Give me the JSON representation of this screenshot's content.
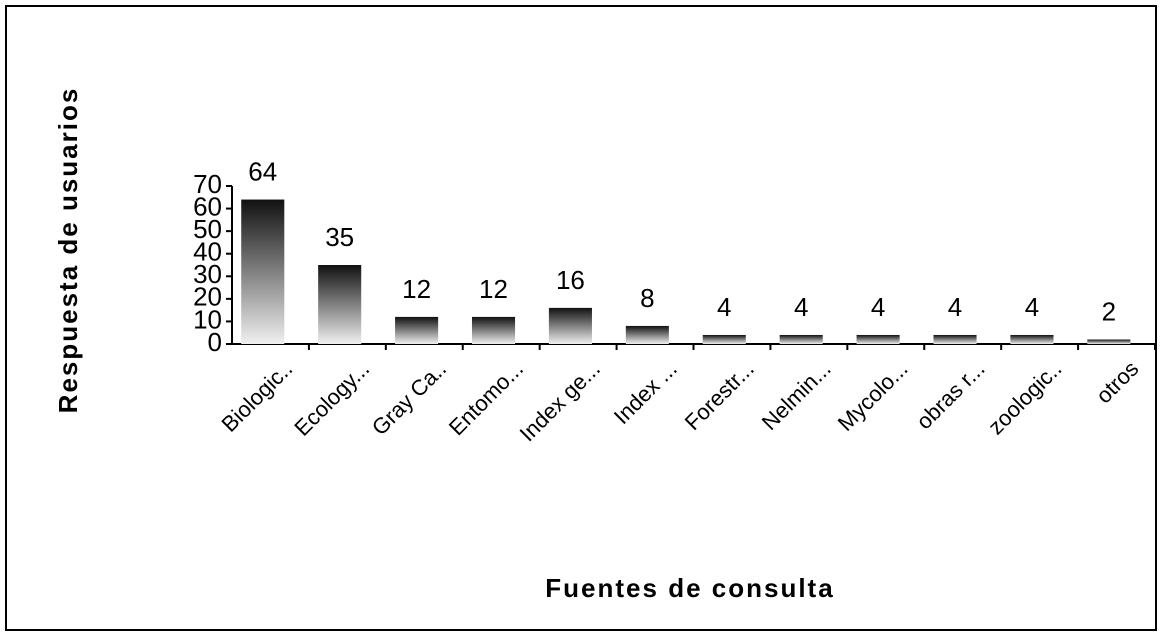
{
  "chart_data": {
    "type": "bar",
    "xlabel": "Fuentes de consulta",
    "ylabel": "Respuesta de usuarios",
    "categories": [
      "Biologic..",
      "Ecology...",
      "Gray Ca..",
      "Entomo...",
      "Index ge...",
      "Index ...",
      "Forestr...",
      "Nelmin...",
      "Mycolo...",
      "obras r...",
      "zoologic..",
      "otros"
    ],
    "values": [
      64,
      35,
      12,
      12,
      16,
      8,
      4,
      4,
      4,
      4,
      4,
      2
    ],
    "color": "#111111",
    "ylim": [
      0,
      70
    ],
    "yticks": [
      0,
      10,
      20,
      30,
      40,
      50,
      60,
      70
    ]
  }
}
